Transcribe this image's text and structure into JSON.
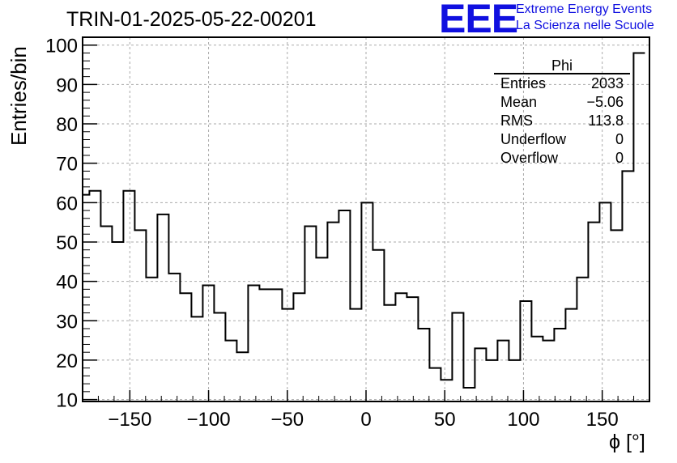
{
  "chart_data": {
    "type": "histogram",
    "title": "TRIN-01-2025-05-22-00201",
    "xlabel": "ϕ [°]",
    "ylabel": "Entries/bin",
    "xlim": [
      -180,
      180
    ],
    "ylim": [
      9.5,
      102
    ],
    "bin_width": 7.2,
    "xticks": [
      -150,
      -100,
      -50,
      0,
      50,
      100,
      150
    ],
    "yticks": [
      10,
      20,
      30,
      40,
      50,
      60,
      70,
      80,
      90,
      100
    ],
    "xtick_labels": [
      "−150",
      "−100",
      "−50",
      "0",
      "50",
      "100",
      "150"
    ],
    "ytick_labels": [
      "10",
      "20",
      "30",
      "40",
      "50",
      "60",
      "70",
      "80",
      "90",
      "100"
    ],
    "grid": true,
    "values": [
      63,
      54,
      50,
      63,
      53,
      41,
      57,
      42,
      37,
      31,
      39,
      32,
      25,
      22,
      39,
      38,
      38,
      33,
      37,
      54,
      46,
      55,
      58,
      33,
      60,
      48,
      34,
      37,
      36,
      28,
      18,
      15,
      32,
      13,
      23,
      20,
      25,
      20,
      35,
      26,
      25,
      28,
      33,
      41,
      55,
      60,
      53,
      68,
      98
    ],
    "first_bin_value": 62
  },
  "stats_box": {
    "title": "Phi",
    "rows": [
      {
        "label": "Entries",
        "value": "2033"
      },
      {
        "label": "Mean",
        "value": "−5.06"
      },
      {
        "label": "RMS",
        "value": "113.8"
      },
      {
        "label": "Underflow",
        "value": "0"
      },
      {
        "label": "Overflow",
        "value": "0"
      }
    ]
  },
  "brand": {
    "logo": "EEE",
    "line1": "Extreme Energy Events",
    "line2": "La Scienza nelle Scuole",
    "color": "#1010e0"
  }
}
